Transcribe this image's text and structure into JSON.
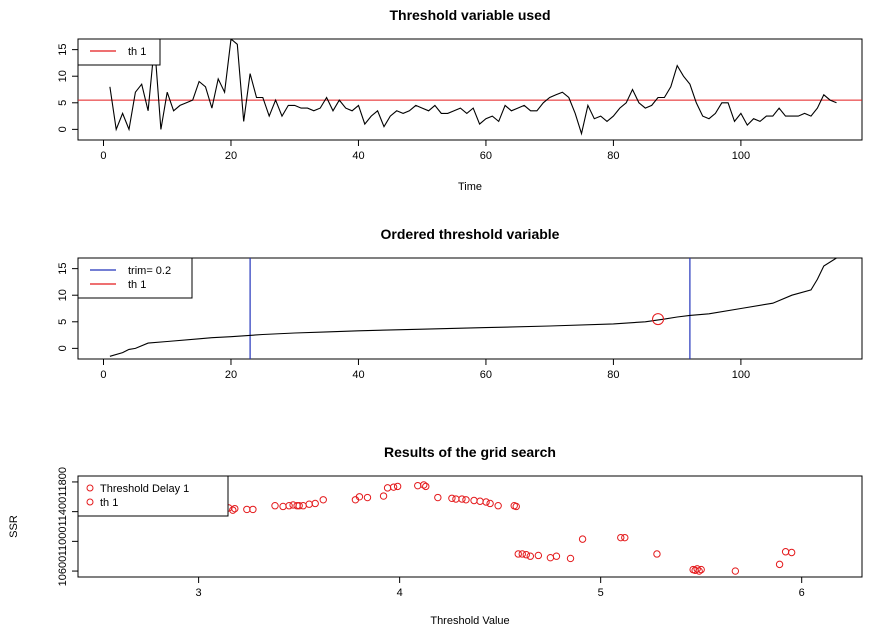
{
  "chart_data": [
    {
      "type": "line",
      "title": "Threshold variable used",
      "xlabel": "Time",
      "ylabel": "",
      "xlim": [
        -4,
        119
      ],
      "ylim": [
        -2,
        17
      ],
      "xticks": [
        "0",
        "20",
        "40",
        "60",
        "80",
        "100"
      ],
      "yticks": [
        "0",
        "5",
        "10",
        "15"
      ],
      "legend": {
        "position": "top-left",
        "entries": [
          {
            "label": "th 1",
            "color": "#e41a1c"
          }
        ]
      },
      "threshold": 5.5,
      "series": [
        {
          "color": "#000000",
          "x": [
            1,
            2,
            3,
            4,
            5,
            6,
            7,
            8,
            9,
            10,
            11,
            12,
            13,
            14,
            15,
            16,
            17,
            18,
            19,
            20,
            21,
            22,
            23,
            24,
            25,
            26,
            27,
            28,
            29,
            30,
            31,
            32,
            33,
            34,
            35,
            36,
            37,
            38,
            39,
            40,
            41,
            42,
            43,
            44,
            45,
            46,
            47,
            48,
            49,
            50,
            51,
            52,
            53,
            54,
            55,
            56,
            57,
            58,
            59,
            60,
            61,
            62,
            63,
            64,
            65,
            66,
            67,
            68,
            69,
            70,
            71,
            72,
            73,
            74,
            75,
            76,
            77,
            78,
            79,
            80,
            81,
            82,
            83,
            84,
            85,
            86,
            87,
            88,
            89,
            90,
            91,
            92,
            93,
            94,
            95,
            96,
            97,
            98,
            99,
            100,
            101,
            102,
            103,
            104,
            105,
            106,
            107,
            108,
            109,
            110,
            111,
            112,
            113,
            114,
            115
          ],
          "y": [
            8,
            0,
            3,
            0,
            7,
            8.5,
            3.5,
            16,
            0,
            7,
            3.5,
            4.5,
            5,
            5.5,
            9,
            8,
            4,
            9.5,
            7,
            17,
            16,
            1.5,
            10.5,
            6,
            6,
            2.5,
            5.5,
            2.5,
            4.5,
            4.5,
            4,
            4,
            3.5,
            4,
            6,
            3.5,
            5.5,
            4,
            3.5,
            4.5,
            1,
            2.5,
            3.5,
            0.5,
            2.5,
            3.5,
            3,
            3.5,
            4.5,
            4,
            3.5,
            4.5,
            3,
            3,
            3.5,
            4,
            3,
            4,
            1,
            2,
            2.5,
            1.5,
            4.5,
            3.5,
            4,
            4.5,
            3.5,
            3.5,
            5,
            6,
            6.5,
            7,
            6,
            3,
            -0.8,
            4.5,
            2,
            2.5,
            1.5,
            2.5,
            4,
            5,
            7.5,
            5,
            4,
            4.5,
            6,
            6,
            8,
            12,
            10,
            8.5,
            5,
            2.5,
            2,
            3,
            5,
            5,
            1.5,
            3,
            0.8,
            2,
            1.5,
            2.5,
            2.5,
            4,
            2.5,
            2.5,
            2.5,
            3,
            2.5,
            4,
            6.5,
            5.5,
            5
          ]
        }
      ]
    },
    {
      "type": "line",
      "title": "Ordered threshold variable",
      "xlabel": "",
      "ylabel": "",
      "xlim": [
        -4,
        119
      ],
      "ylim": [
        -2,
        17
      ],
      "xticks": [
        "0",
        "20",
        "40",
        "60",
        "80",
        "100"
      ],
      "yticks": [
        "0",
        "5",
        "10",
        "15"
      ],
      "legend": {
        "position": "top-left",
        "entries": [
          {
            "label": "trim= 0.2",
            "color": "#2233bb"
          },
          {
            "label": "th 1",
            "color": "#e41a1c"
          }
        ]
      },
      "trim_lines": [
        23,
        92
      ],
      "selected_point": {
        "x": 87,
        "y": 5.5
      },
      "series": [
        {
          "color": "#000000",
          "x": [
            1,
            3,
            4,
            5,
            7,
            10,
            15,
            17,
            20,
            25,
            30,
            35,
            40,
            50,
            60,
            70,
            80,
            85,
            88,
            90,
            92,
            95,
            100,
            105,
            108,
            111,
            112,
            113,
            115
          ],
          "y": [
            -1.5,
            -0.8,
            -0.2,
            0,
            1,
            1.3,
            1.8,
            2,
            2.2,
            2.6,
            2.9,
            3.1,
            3.3,
            3.6,
            3.9,
            4.2,
            4.6,
            5,
            5.5,
            5.9,
            6.2,
            6.5,
            7.5,
            8.5,
            10,
            11,
            13,
            15.5,
            17
          ]
        }
      ]
    },
    {
      "type": "scatter",
      "title": "Results of the grid search",
      "xlabel": "Threshold Value",
      "ylabel": "SSR",
      "xlim": [
        2.4,
        6.3
      ],
      "ylim": [
        10520,
        11880
      ],
      "xticks": [
        "3",
        "4",
        "5",
        "6"
      ],
      "yticks": [
        "10600",
        "11000",
        "11400",
        "11800"
      ],
      "legend": {
        "position": "top-left",
        "entries": [
          {
            "label": "Threshold Delay 1",
            "color": "#e41a1c"
          },
          {
            "label": "th 1",
            "color": "#e41a1c"
          }
        ]
      },
      "series": [
        {
          "color": "#e41a1c",
          "x": [
            3.09,
            3.15,
            3.17,
            3.18,
            3.24,
            3.27,
            3.38,
            3.42,
            3.45,
            3.47,
            3.49,
            3.5,
            3.52,
            3.55,
            3.58,
            3.62,
            3.78,
            3.8,
            3.84,
            3.92,
            3.94,
            3.97,
            3.99,
            4.09,
            4.12,
            4.13,
            4.19,
            4.26,
            4.28,
            4.31,
            4.33,
            4.37,
            4.4,
            4.43,
            4.45,
            4.49,
            4.57,
            4.58,
            4.59,
            4.61,
            4.63,
            4.65,
            4.69,
            4.75,
            4.78,
            4.85,
            4.91,
            5.1,
            5.12,
            5.28,
            5.46,
            5.47,
            5.48,
            5.49,
            5.5,
            5.67,
            5.89,
            5.92,
            5.95
          ],
          "y": [
            11440,
            11450,
            11420,
            11440,
            11430,
            11430,
            11480,
            11470,
            11480,
            11490,
            11480,
            11480,
            11480,
            11500,
            11510,
            11560,
            11560,
            11600,
            11590,
            11610,
            11720,
            11730,
            11740,
            11750,
            11760,
            11740,
            11590,
            11580,
            11570,
            11570,
            11560,
            11550,
            11540,
            11530,
            11510,
            11480,
            11480,
            11470,
            10830,
            10830,
            10820,
            10800,
            10810,
            10780,
            10800,
            10770,
            11030,
            11050,
            11050,
            10830,
            10620,
            10610,
            10630,
            10600,
            10620,
            10600,
            10690,
            10860,
            10850
          ]
        }
      ]
    }
  ]
}
